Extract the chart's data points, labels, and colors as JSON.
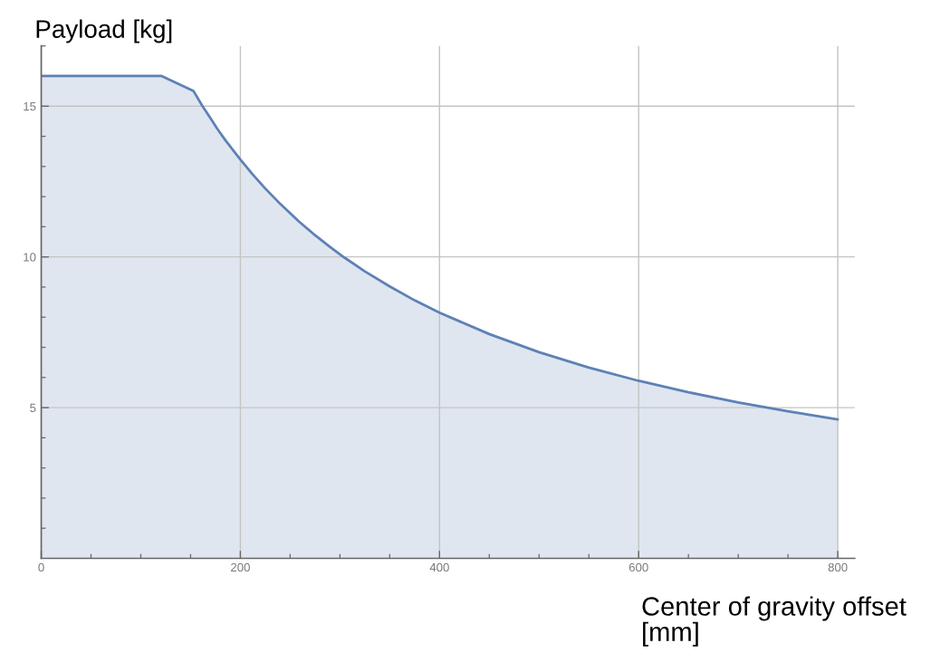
{
  "chart_data": {
    "type": "area",
    "xlabel": "Center of gravity offset [mm]",
    "ylabel": "Payload [kg]",
    "x": [
      0,
      121,
      153,
      162,
      170,
      177,
      185,
      200,
      212,
      225,
      240,
      259,
      275,
      290,
      304,
      325,
      350,
      375,
      400,
      450,
      500,
      550,
      600,
      650,
      700,
      750,
      800
    ],
    "series": [
      {
        "color": "#5e81b5",
        "values": [
          16,
          16,
          15.5,
          15.0,
          14.6,
          14.24,
          13.87,
          13.23,
          12.75,
          12.27,
          11.76,
          11.17,
          10.72,
          10.33,
          9.99,
          9.52,
          9.02,
          8.56,
          8.15,
          7.44,
          6.84,
          6.33,
          5.89,
          5.51,
          5.17,
          4.88,
          4.61
        ]
      }
    ],
    "xlim": [
      0,
      817
    ],
    "ylim": [
      0,
      17
    ],
    "xticks": [
      0,
      {
        "value": 50,
        "label": null
      },
      {
        "value": 100,
        "label": null
      },
      {
        "value": 150,
        "label": null
      },
      200,
      {
        "value": 250,
        "label": null
      },
      {
        "value": 300,
        "label": null
      },
      {
        "value": 350,
        "label": null
      },
      400,
      {
        "value": 450,
        "label": null
      },
      {
        "value": 500,
        "label": null
      },
      {
        "value": 550,
        "label": null
      },
      600,
      {
        "value": 650,
        "label": null
      },
      {
        "value": 700,
        "label": null
      },
      {
        "value": 750,
        "label": null
      },
      800
    ],
    "yticks": [
      {
        "value": 1,
        "label": null
      },
      {
        "value": 2,
        "label": null
      },
      {
        "value": 3,
        "label": null
      },
      {
        "value": 4,
        "label": null
      },
      5,
      {
        "value": 6,
        "label": null
      },
      {
        "value": 7,
        "label": null
      },
      {
        "value": 8,
        "label": null
      },
      {
        "value": 9,
        "label": null
      },
      10,
      {
        "value": 11,
        "label": null
      },
      {
        "value": 12,
        "label": null
      },
      {
        "value": 13,
        "label": null
      },
      {
        "value": 14,
        "label": null
      },
      15,
      {
        "value": 16,
        "label": null
      },
      {
        "value": 17,
        "label": null
      }
    ],
    "grid": true
  }
}
